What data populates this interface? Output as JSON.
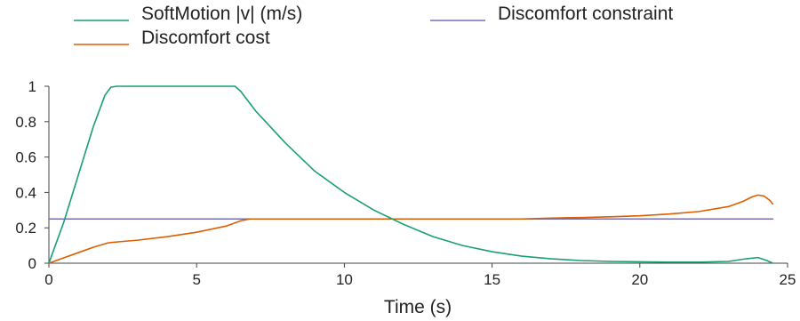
{
  "chart_data": {
    "type": "line",
    "title": "",
    "xlabel": "Time (s)",
    "ylabel": "",
    "xlim": [
      0,
      25
    ],
    "ylim": [
      0,
      1
    ],
    "x_ticks": [
      "0",
      "5",
      "10",
      "15",
      "20",
      "25"
    ],
    "y_ticks": [
      "0",
      "0.2",
      "0.4",
      "0.6",
      "0.8",
      "1"
    ],
    "grid": false,
    "legend_position": "top",
    "series": [
      {
        "name": "SoftMotion |v| (m/s)",
        "color": "#1a9e77",
        "x": [
          0,
          0.5,
          1.0,
          1.5,
          1.9,
          2.1,
          2.3,
          3.0,
          4.0,
          5.0,
          6.0,
          6.3,
          6.5,
          7.0,
          8.0,
          9.0,
          10.0,
          11.0,
          12.0,
          13.0,
          14.0,
          15.0,
          16.0,
          17.0,
          18.0,
          19.0,
          20.0,
          21.0,
          22.0,
          23.0,
          23.6,
          24.0,
          24.3,
          24.5
        ],
        "values": [
          0,
          0.23,
          0.5,
          0.77,
          0.95,
          0.995,
          1.0,
          1.0,
          1.0,
          1.0,
          1.0,
          1.0,
          0.97,
          0.86,
          0.68,
          0.52,
          0.4,
          0.3,
          0.22,
          0.15,
          0.1,
          0.065,
          0.04,
          0.025,
          0.015,
          0.01,
          0.008,
          0.006,
          0.006,
          0.01,
          0.025,
          0.032,
          0.015,
          0.0
        ]
      },
      {
        "name": "Discomfort cost",
        "color": "#d95f02",
        "x": [
          0,
          0.5,
          1.0,
          1.5,
          2.0,
          2.3,
          3.0,
          4.0,
          5.0,
          6.0,
          6.5,
          6.8,
          10.2,
          12.0,
          14.0,
          16.0,
          17.0,
          18.0,
          19.0,
          20.0,
          21.0,
          22.0,
          23.0,
          23.5,
          23.8,
          24.0,
          24.2,
          24.4,
          24.5
        ],
        "values": [
          0.0,
          0.03,
          0.06,
          0.09,
          0.115,
          0.12,
          0.13,
          0.15,
          0.175,
          0.21,
          0.24,
          0.25,
          0.25,
          0.25,
          0.25,
          0.25,
          0.255,
          0.258,
          0.262,
          0.268,
          0.278,
          0.292,
          0.32,
          0.35,
          0.375,
          0.385,
          0.38,
          0.355,
          0.335
        ]
      },
      {
        "name": "Discomfort constraint",
        "color": "#7570b3",
        "x": [
          0,
          24.5
        ],
        "values": [
          0.25,
          0.25
        ]
      }
    ]
  }
}
